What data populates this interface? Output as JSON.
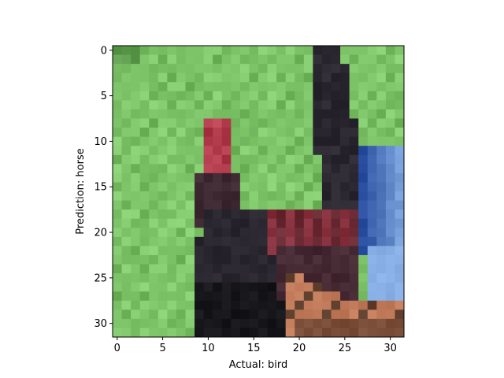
{
  "figure": {
    "xlabel": "Actual: bird",
    "ylabel": "Prediction: horse"
  },
  "image": {
    "description_name": "pixelated-bird-photo",
    "grid_size": [
      32,
      32
    ],
    "xlim": [
      -0.5,
      31.5
    ],
    "ylim": [
      31.5,
      -0.5
    ],
    "xticks": [
      0,
      5,
      10,
      15,
      20,
      25,
      30
    ],
    "yticks": [
      0,
      5,
      10,
      15,
      20,
      25,
      30
    ],
    "xtick_labels": [
      "0",
      "5",
      "10",
      "15",
      "20",
      "25",
      "30"
    ],
    "ytick_labels": [
      "0",
      "5",
      "10",
      "15",
      "20",
      "25",
      "30"
    ],
    "palette": {
      "grass": "#7cc466",
      "grass_dark": "#5e9d4e",
      "grass_light": "#8ccf78",
      "bird_dark": "#2a2730",
      "bird_black": "#17161a",
      "bird_red": "#b23b4c",
      "bird_maroon": "#6a2a34",
      "blue": "#2a4fa0",
      "sky_blue": "#88b0e6",
      "tan": "#c07a5a",
      "brown": "#5a3a28"
    }
  }
}
